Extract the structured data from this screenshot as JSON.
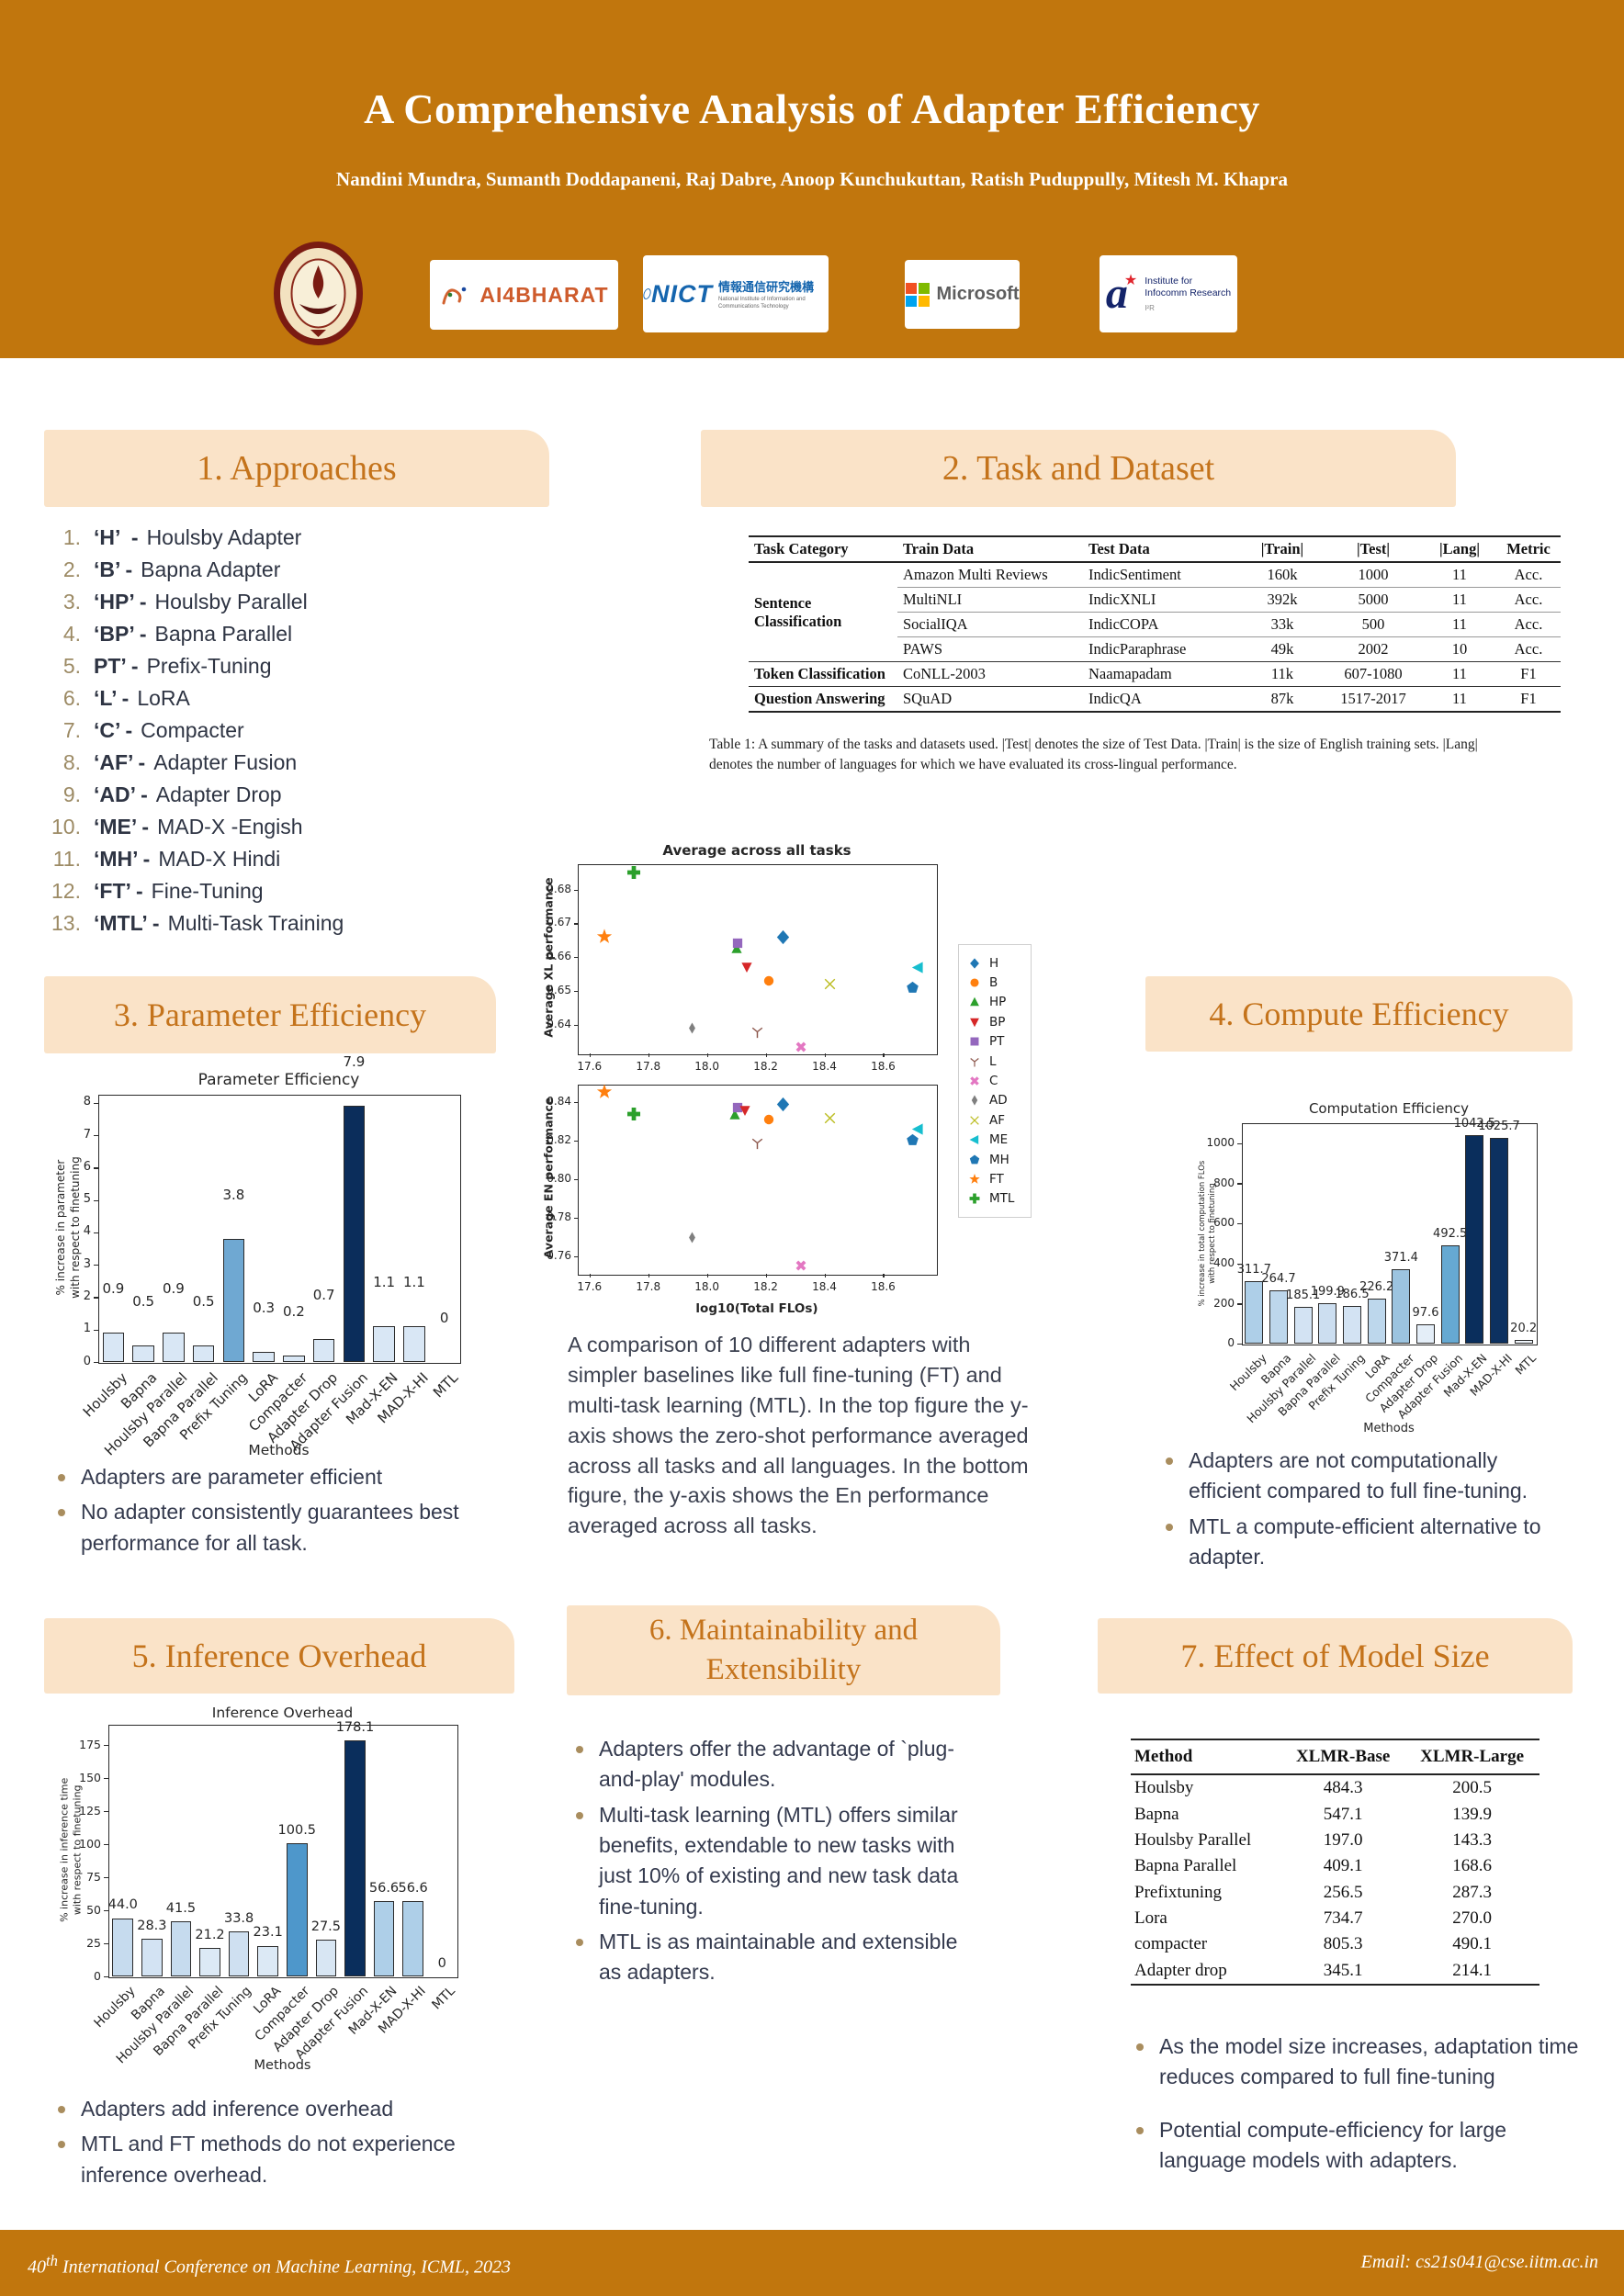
{
  "header": {
    "title": "A Comprehensive Analysis of Adapter Efficiency",
    "authors": "Nandini Mundra,  Sumanth Doddapaneni, Raj Dabre, Anoop Kunchukuttan, Ratish Puduppully, Mitesh M. Khapra",
    "accent_color": "#C1760D",
    "panel_color": "#FAE3C8",
    "panel_text_color": "#C4731B"
  },
  "logos": {
    "iitm": {
      "name": "IIT Madras"
    },
    "ai4bharat": {
      "text": "AI4BHARAT"
    },
    "nict": {
      "text": "NICT",
      "jp": "情報通信研究機構",
      "sub": "National Institute of Information and Communications Technology"
    },
    "microsoft": {
      "text": "Microsoft"
    },
    "astar": {
      "a": "a",
      "star": "★",
      "line1": "Institute for",
      "line2": "Infocomm Research",
      "sub": "I²R"
    }
  },
  "sections": {
    "approaches": {
      "title": "1.  Approaches",
      "items": [
        {
          "num": "1.",
          "code": "‘H’  -",
          "desc": "Houlsby Adapter"
        },
        {
          "num": "2.",
          "code": "‘B’ -",
          "desc": "Bapna Adapter"
        },
        {
          "num": "3.",
          "code": "‘HP’ -",
          "desc": "Houlsby Parallel"
        },
        {
          "num": "4.",
          "code": "‘BP’ -",
          "desc": "Bapna Parallel"
        },
        {
          "num": "5.",
          "code": "PT’ -",
          "desc": "Prefix-Tuning"
        },
        {
          "num": "6.",
          "code": "‘L’ -",
          "desc": "LoRA"
        },
        {
          "num": "7.",
          "code": "‘C’ -",
          "desc": "Compacter"
        },
        {
          "num": "8.",
          "code": "‘AF’ -",
          "desc": "Adapter Fusion"
        },
        {
          "num": "9.",
          "code": "‘AD’ -",
          "desc": "Adapter Drop"
        },
        {
          "num": "10.",
          "code": "‘ME’ -",
          "desc": "MAD-X -Engish"
        },
        {
          "num": "11.",
          "code": "‘MH’ -",
          "desc": "MAD-X Hindi"
        },
        {
          "num": "12.",
          "code": "‘FT’ -",
          "desc": "Fine-Tuning"
        },
        {
          "num": "13.",
          "code": "‘MTL’ -",
          "desc": "Multi-Task Training"
        }
      ]
    },
    "task_dataset": {
      "title": "2. Task and Dataset",
      "table": {
        "columns": [
          "Task Category",
          "Train Data",
          "Test Data",
          "|Train|",
          "|Test|",
          "|Lang|",
          "Metric"
        ],
        "rows": [
          {
            "cat": "Sentence Classification",
            "catspan": 4,
            "cells": [
              "Amazon Multi Reviews",
              "IndicSentiment",
              "160k",
              "1000",
              "11",
              "Acc."
            ]
          },
          {
            "cells": [
              "MultiNLI",
              "IndicXNLI",
              "392k",
              "5000",
              "11",
              "Acc."
            ]
          },
          {
            "cells": [
              "SocialIQA",
              "IndicCOPA",
              "33k",
              "500",
              "11",
              "Acc."
            ],
            "end": false
          },
          {
            "cells": [
              "PAWS",
              "IndicParaphrase",
              "49k",
              "2002",
              "10",
              "Acc."
            ],
            "grp": true
          },
          {
            "cat": "Token Classification",
            "catspan": 1,
            "cells": [
              "CoNLL-2003",
              "Naamapadam",
              "11k",
              "607-1080",
              "11",
              "F1"
            ],
            "grp": true
          },
          {
            "cat": "Question Answering",
            "catspan": 1,
            "cells": [
              "SQuAD",
              "IndicQA",
              "87k",
              "1517-2017",
              "11",
              "F1"
            ],
            "last": true
          }
        ]
      },
      "caption": "Table 1: A summary of the tasks and datasets used. |Test| denotes the size of Test Data. |Train| is the size of English training sets. |Lang| denotes the number of languages for which we have evaluated its cross-lingual performance."
    },
    "param_eff": {
      "title": "3. Parameter Efficiency",
      "bullets": [
        "Adapters are parameter efficient",
        "No adapter consistently guarantees best performance for all task."
      ]
    },
    "compute_eff": {
      "title": "4. Compute Efficiency",
      "bullets": [
        "Adapters are not computationally efficient compared to full fine-tuning.",
        "MTL a compute-efficient alternative to adapter."
      ]
    },
    "inference": {
      "title": "5. Inference Overhead",
      "bullets": [
        "Adapters add inference overhead",
        "MTL and FT methods do not experience inference overhead."
      ]
    },
    "maintain": {
      "title": "6. Maintainability and Extensibility",
      "bullets": [
        "Adapters offer the advantage of `plug-and-play' modules.",
        "Multi-task learning (MTL) offers similar benefits, extendable to new tasks with just 10% of existing and new task data fine-tuning.",
        "MTL is as maintainable and extensible as adapters."
      ]
    },
    "model_size": {
      "title": "7. Effect of Model Size",
      "table": {
        "columns": [
          "Method",
          "XLMR-Base",
          "XLMR-Large"
        ],
        "rows": [
          [
            "Houlsby",
            "484.3",
            "200.5"
          ],
          [
            "Bapna",
            "547.1",
            "139.9"
          ],
          [
            "Houlsby Parallel",
            "197.0",
            "143.3"
          ],
          [
            "Bapna Parallel",
            "409.1",
            "168.6"
          ],
          [
            "Prefixtuning",
            "256.5",
            "287.3"
          ],
          [
            "Lora",
            "734.7",
            "270.0"
          ],
          [
            "compacter",
            "805.3",
            "490.1"
          ],
          [
            "Adapter drop",
            "345.1",
            "214.1"
          ]
        ]
      },
      "bullets": [
        "As the model size increases, adaptation time reduces compared to full fine-tuning",
        "Potential compute-efficiency for large language models with adapters."
      ]
    }
  },
  "figure_description": "A comparison of 10 different adapters with simpler baselines like full fine-tuning (FT) and multi-task learning (MTL). In the top figure the y-axis shows the zero-shot performance averaged across all tasks and all languages. In the bottom figure, the y-axis shows the En performance averaged across all tasks.",
  "legend": {
    "entries": [
      {
        "label": "H",
        "marker": "diamond",
        "color": "#1f77b4"
      },
      {
        "label": "B",
        "marker": "circle",
        "color": "#ff7f0e"
      },
      {
        "label": "HP",
        "marker": "triangle-up",
        "color": "#2ca02c"
      },
      {
        "label": "BP",
        "marker": "triangle-down",
        "color": "#d62728"
      },
      {
        "label": "PT",
        "marker": "square",
        "color": "#9467bd"
      },
      {
        "label": "L",
        "marker": "tri-down",
        "color": "#8c564b"
      },
      {
        "label": "C",
        "marker": "x-bold",
        "color": "#e377c2"
      },
      {
        "label": "AD",
        "marker": "thin-diamond",
        "color": "#7f7f7f"
      },
      {
        "label": "AF",
        "marker": "x-thin",
        "color": "#bcbd22"
      },
      {
        "label": "ME",
        "marker": "tri-left",
        "color": "#17becf"
      },
      {
        "label": "MH",
        "marker": "pentagon",
        "color": "#1f77b4"
      },
      {
        "label": "FT",
        "marker": "star",
        "color": "#ff7f0e"
      },
      {
        "label": "MTL",
        "marker": "plus",
        "color": "#2ca02c"
      }
    ]
  },
  "chart_data": [
    {
      "id": "scatter-xl",
      "type": "scatter",
      "title": "Average across all tasks",
      "ylabel": "Average XL performance",
      "xlabel": "",
      "xlim": [
        17.56,
        18.78
      ],
      "ylim": [
        0.6315,
        0.6875
      ],
      "xticks": [
        "17.6",
        "17.8",
        "18.0",
        "18.2",
        "18.4",
        "18.6"
      ],
      "yticks": [
        "0.64",
        "0.65",
        "0.66",
        "0.67",
        "0.68"
      ],
      "points": [
        {
          "name": "AD",
          "marker": "thin-diamond",
          "color": "#7f7f7f",
          "x": 17.95,
          "y": 0.639
        },
        {
          "name": "L",
          "marker": "tri-down",
          "color": "#8c564b",
          "x": 18.17,
          "y": 0.638
        },
        {
          "name": "C",
          "marker": "x-bold",
          "color": "#e377c2",
          "x": 18.32,
          "y": 0.6335
        },
        {
          "name": "HP",
          "marker": "triangle-up",
          "color": "#2ca02c",
          "x": 18.1,
          "y": 0.6625
        },
        {
          "name": "PT",
          "marker": "square",
          "color": "#9467bd",
          "x": 18.105,
          "y": 0.664
        },
        {
          "name": "BP",
          "marker": "triangle-down",
          "color": "#d62728",
          "x": 18.135,
          "y": 0.657
        },
        {
          "name": "B",
          "marker": "circle",
          "color": "#ff7f0e",
          "x": 18.21,
          "y": 0.653
        },
        {
          "name": "H",
          "marker": "diamond",
          "color": "#1f77b4",
          "x": 18.26,
          "y": 0.666
        },
        {
          "name": "AF",
          "marker": "x-thin",
          "color": "#bcbd22",
          "x": 18.42,
          "y": 0.652
        },
        {
          "name": "ME",
          "marker": "tri-left",
          "color": "#17becf",
          "x": 18.72,
          "y": 0.657
        },
        {
          "name": "MH",
          "marker": "pentagon",
          "color": "#1f77b4",
          "x": 18.7,
          "y": 0.651
        },
        {
          "name": "FT",
          "marker": "star",
          "color": "#ff7f0e",
          "x": 17.65,
          "y": 0.666
        },
        {
          "name": "MTL",
          "marker": "plus",
          "color": "#2ca02c",
          "x": 17.75,
          "y": 0.685
        }
      ]
    },
    {
      "id": "scatter-en",
      "type": "scatter",
      "title": "",
      "ylabel": "Average EN performance",
      "xlabel": "log10(Total FLOs)",
      "xlim": [
        17.56,
        18.78
      ],
      "ylim": [
        0.751,
        0.849
      ],
      "xticks": [
        "17.6",
        "17.8",
        "18.0",
        "18.2",
        "18.4",
        "18.6"
      ],
      "yticks": [
        "0.76",
        "0.78",
        "0.80",
        "0.82",
        "0.84"
      ],
      "points": [
        {
          "name": "AD",
          "marker": "thin-diamond",
          "color": "#7f7f7f",
          "x": 17.95,
          "y": 0.77
        },
        {
          "name": "L",
          "marker": "tri-down",
          "color": "#8c564b",
          "x": 18.17,
          "y": 0.819
        },
        {
          "name": "C",
          "marker": "x-bold",
          "color": "#e377c2",
          "x": 18.32,
          "y": 0.7555
        },
        {
          "name": "HP",
          "marker": "triangle-up",
          "color": "#2ca02c",
          "x": 18.095,
          "y": 0.8335
        },
        {
          "name": "PT",
          "marker": "square",
          "color": "#9467bd",
          "x": 18.105,
          "y": 0.837
        },
        {
          "name": "BP",
          "marker": "triangle-down",
          "color": "#d62728",
          "x": 18.13,
          "y": 0.8355
        },
        {
          "name": "B",
          "marker": "circle",
          "color": "#ff7f0e",
          "x": 18.21,
          "y": 0.831
        },
        {
          "name": "H",
          "marker": "diamond",
          "color": "#1f77b4",
          "x": 18.26,
          "y": 0.839
        },
        {
          "name": "AF",
          "marker": "x-thin",
          "color": "#bcbd22",
          "x": 18.42,
          "y": 0.8315
        },
        {
          "name": "ME",
          "marker": "tri-left",
          "color": "#17becf",
          "x": 18.72,
          "y": 0.826
        },
        {
          "name": "MH",
          "marker": "pentagon",
          "color": "#1f77b4",
          "x": 18.7,
          "y": 0.82
        },
        {
          "name": "FT",
          "marker": "star",
          "color": "#ff7f0e",
          "x": 17.65,
          "y": 0.845
        },
        {
          "name": "MTL",
          "marker": "plus",
          "color": "#2ca02c",
          "x": 17.75,
          "y": 0.834
        }
      ]
    },
    {
      "id": "bar-param",
      "type": "bar",
      "title": "Parameter Efficiency",
      "ylabel_lines": [
        "% increase in parameter",
        "with respect to finetuning"
      ],
      "xlabel": "Methods",
      "categories": [
        "Houlsby",
        "Bapna",
        "Houlsby Parallel",
        "Bapna Parallel",
        "Prefix Tuning",
        "LoRA",
        "Compacter",
        "Adapter Drop",
        "Adapter Fusion",
        "Mad-X-EN",
        "MAD-X-HI",
        "MTL"
      ],
      "values": [
        0.9,
        0.5,
        0.9,
        0.5,
        3.8,
        0.3,
        0.2,
        0.7,
        7.9,
        1.1,
        1.1,
        0
      ],
      "labels": [
        "0.9",
        "0.5",
        "0.9",
        "0.5",
        "3.8",
        "0.3",
        "0.2",
        "0.7",
        "7.9",
        "1.1",
        "1.1",
        "0"
      ],
      "colors": [
        "#D9E7F5",
        "#D9E7F5",
        "#D9E7F5",
        "#D9E7F5",
        "#6FA8D2",
        "#D9E7F5",
        "#D9E7F5",
        "#D9E7F5",
        "#0B2D5B",
        "#D9E7F5",
        "#D9E7F5",
        "#D9E7F5"
      ],
      "yticks": [
        0,
        1,
        2,
        3,
        4,
        5,
        6,
        7,
        8
      ],
      "ymax": 8.25
    },
    {
      "id": "bar-compute",
      "type": "bar",
      "title": "Computation Efficiency",
      "ylabel_lines": [
        "% increase in total computation FLOs",
        "with respect to finetuning"
      ],
      "xlabel": "Methods",
      "categories": [
        "Houlsby",
        "Bapna",
        "Houlsby Parallel",
        "Bapna Parallel",
        "Prefix Tuning",
        "LoRA",
        "Compacter",
        "Adapter Drop",
        "Adapter Fusion",
        "Mad-X-EN",
        "MAD-X-HI",
        "MTL"
      ],
      "values": [
        311.7,
        264.7,
        185.1,
        199.9,
        186.5,
        226.2,
        371.4,
        97.6,
        492.5,
        1042.5,
        1025.7,
        20.2
      ],
      "labels": [
        "311.7",
        "264.7",
        "185.1",
        "199.9",
        "186.5",
        "226.2",
        "371.4",
        "97.6",
        "492.5",
        "1042.5",
        "1025.7",
        "20.2"
      ],
      "colors": [
        "#AECFE8",
        "#BDD7EC",
        "#D3E3F3",
        "#CCDEF0",
        "#D3E3F3",
        "#BDD7EC",
        "#9CC4E0",
        "#E4EEF8",
        "#66A9D2",
        "#0A2E5C",
        "#0D3160",
        "#EFF5FB"
      ],
      "yticks": [
        0,
        200,
        400,
        600,
        800,
        1000
      ],
      "ymax": 1100
    },
    {
      "id": "bar-infer",
      "type": "bar",
      "title": "Inference Overhead",
      "ylabel_lines": [
        "% increase in inference time",
        "with respect to finetuning"
      ],
      "xlabel": "Methods",
      "categories": [
        "Houlsby",
        "Bapna",
        "Houlsby Parallel",
        "Bapna Parallel",
        "Prefix Tuning",
        "LoRA",
        "Compacter",
        "Adapter Drop",
        "Adapter Fusion",
        "Mad-X-EN",
        "MAD-X-HI",
        "MTL"
      ],
      "values": [
        44.0,
        28.3,
        41.5,
        21.2,
        33.8,
        23.1,
        100.5,
        27.5,
        178.1,
        56.6,
        56.6,
        0
      ],
      "labels": [
        "44.0",
        "28.3",
        "41.5",
        "21.2",
        "33.8",
        "23.1",
        "100.5",
        "27.5",
        "178.1",
        "56.6",
        "56.6",
        "0"
      ],
      "colors": [
        "#C6DBEE",
        "#D3E3F3",
        "#C6DBEE",
        "#DCE9F5",
        "#CFE0F1",
        "#DCE9F5",
        "#4E97CB",
        "#D8E6F3",
        "#0A2E5C",
        "#AECFE8",
        "#AECFE8",
        "#DCE9F5"
      ],
      "yticks": [
        0,
        25,
        50,
        75,
        100,
        125,
        150,
        175
      ],
      "ymax": 190
    }
  ],
  "footer": {
    "left_num": "40",
    "left_sup": "th",
    "left_rest": " International Conference on Machine Learning, ICML, 2023",
    "right": "Email: cs21s041@cse.iitm.ac.in"
  }
}
